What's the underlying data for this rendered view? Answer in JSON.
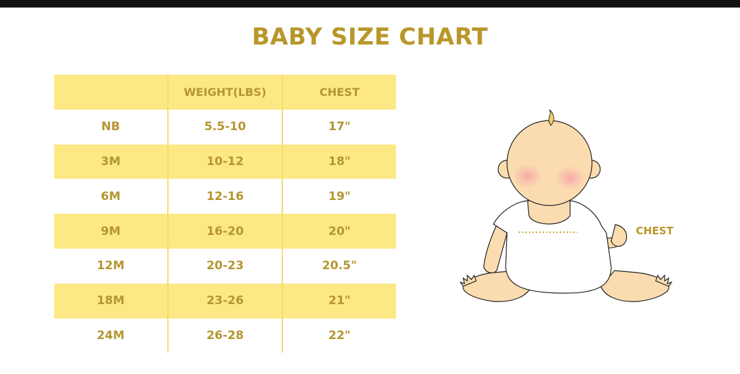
{
  "title": "BABY SIZE CHART",
  "table": {
    "headers": [
      "",
      "WEIGHT(LBS)",
      "CHEST"
    ],
    "rows": [
      [
        "NB",
        "5.5-10",
        "17\""
      ],
      [
        "3M",
        "10-12",
        "18\""
      ],
      [
        "6M",
        "12-16",
        "19\""
      ],
      [
        "9M",
        "16-20",
        "20\""
      ],
      [
        "12M",
        "20-23",
        "20.5\""
      ],
      [
        "18M",
        "23-26",
        "21\""
      ],
      [
        "24M",
        "26-28",
        "22\""
      ]
    ]
  },
  "illustration": {
    "label": "CHEST",
    "icon": "baby-illustration"
  },
  "colors": {
    "accent": "#b8972a",
    "row_fill": "#fde886"
  }
}
